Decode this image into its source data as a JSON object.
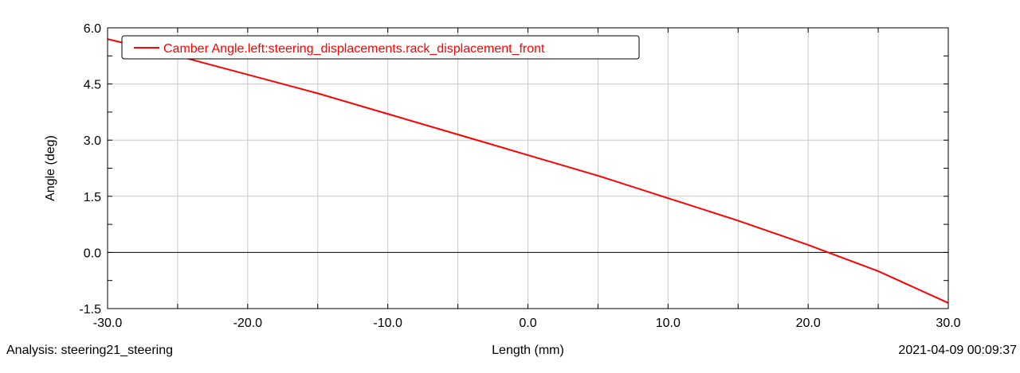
{
  "chart_data": {
    "type": "line",
    "title": "",
    "xlabel": "Length (mm)",
    "ylabel": "Angle (deg)",
    "xlim": [
      -30.0,
      30.0
    ],
    "ylim": [
      -1.5,
      6.0
    ],
    "x_ticks": [
      "-30.0",
      "-20.0",
      "-10.0",
      "0.0",
      "10.0",
      "20.0",
      "30.0"
    ],
    "y_ticks": [
      "-1.5",
      "0.0",
      "1.5",
      "3.0",
      "4.5",
      "6.0"
    ],
    "x_tick_values": [
      -30,
      -20,
      -10,
      0,
      10,
      20,
      30
    ],
    "y_tick_values": [
      -1.5,
      0.0,
      1.5,
      3.0,
      4.5,
      6.0
    ],
    "x_minor_step": 5,
    "y_minor_step": 0.75,
    "grid": true,
    "zero_line": true,
    "legend_position": "top-left",
    "series": [
      {
        "name": "Camber Angle.left:steering_displacements.rack_displacement_front",
        "color": "#ff0000",
        "x": [
          -30,
          -25,
          -20,
          -15,
          -10,
          -5,
          0,
          5,
          10,
          15,
          20,
          25,
          30
        ],
        "y": [
          5.7,
          5.25,
          4.75,
          4.25,
          3.7,
          3.15,
          2.6,
          2.05,
          1.45,
          0.85,
          0.2,
          -0.5,
          -1.35
        ]
      }
    ]
  },
  "footer": {
    "analysis_label": "Analysis:  steering21_steering",
    "xaxis_label": "Length (mm)",
    "timestamp": "2021-04-09 00:09:37"
  }
}
